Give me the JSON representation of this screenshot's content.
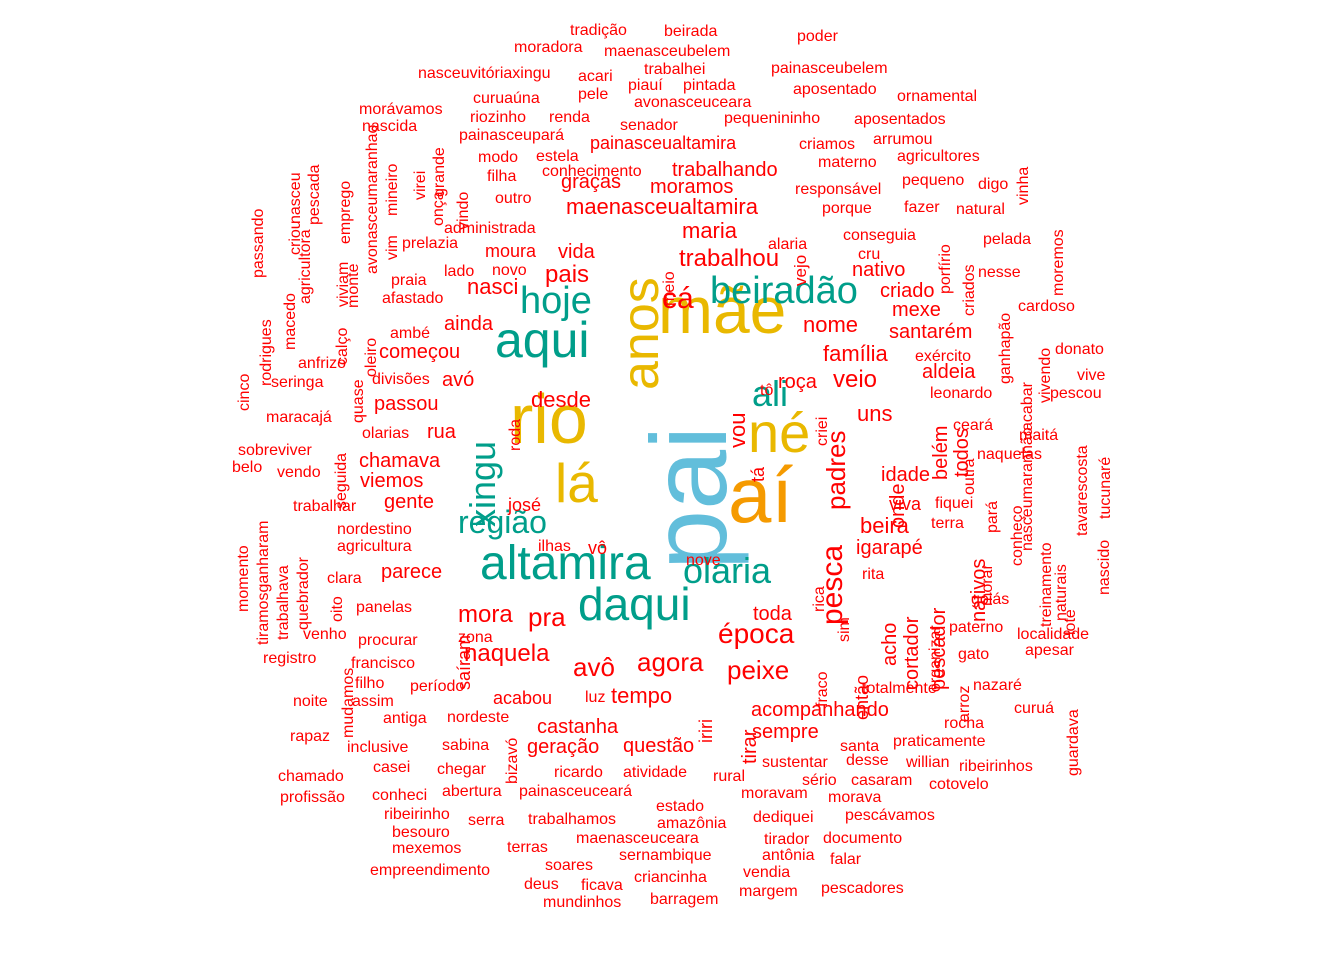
{
  "chart_data": {
    "type": "wordcloud",
    "colors": {
      "c1": "#62bedb",
      "c2": "#f59a00",
      "c3": "#e9b800",
      "c4": "#009e8a",
      "c5": "#ff0000"
    },
    "words": [
      {
        "text": "pai",
        "weight": 110,
        "color": "c1",
        "rotate": true
      },
      {
        "text": "aí",
        "weight": 80,
        "color": "c2",
        "rotate": false
      },
      {
        "text": "mãe",
        "weight": 70,
        "color": "c3",
        "rotate": false
      },
      {
        "text": "rio",
        "weight": 70,
        "color": "c3",
        "rotate": false
      },
      {
        "text": "anos",
        "weight": 55,
        "color": "c3",
        "rotate": true
      },
      {
        "text": "né",
        "weight": 55,
        "color": "c3",
        "rotate": false
      },
      {
        "text": "lá",
        "weight": 55,
        "color": "c3",
        "rotate": false
      },
      {
        "text": "aqui",
        "weight": 50,
        "color": "c4",
        "rotate": false
      },
      {
        "text": "altamira",
        "weight": 48,
        "color": "c4",
        "rotate": false
      },
      {
        "text": "daqui",
        "weight": 45,
        "color": "c4",
        "rotate": false
      },
      {
        "text": "hoje",
        "weight": 38,
        "color": "c4",
        "rotate": false
      },
      {
        "text": "beiradão",
        "weight": 38,
        "color": "c4",
        "rotate": false
      },
      {
        "text": "xingu",
        "weight": 36,
        "color": "c4",
        "rotate": true
      },
      {
        "text": "olaria",
        "weight": 36,
        "color": "c4",
        "rotate": false
      },
      {
        "text": "ali",
        "weight": 34,
        "color": "c4",
        "rotate": false
      },
      {
        "text": "região",
        "weight": 32,
        "color": "c4",
        "rotate": false
      },
      {
        "text": "cá",
        "weight": 30,
        "color": "c5",
        "rotate": false
      },
      {
        "text": "pesca",
        "weight": 30,
        "color": "c5",
        "rotate": true
      },
      {
        "text": "época",
        "weight": 28,
        "color": "c5",
        "rotate": false
      },
      {
        "text": "avô",
        "weight": 26,
        "color": "c5",
        "rotate": false
      },
      {
        "text": "agora",
        "weight": 26,
        "color": "c5",
        "rotate": false
      },
      {
        "text": "peixe",
        "weight": 26,
        "color": "c5",
        "rotate": false
      },
      {
        "text": "padres",
        "weight": 26,
        "color": "c5",
        "rotate": true
      },
      {
        "text": "pra",
        "weight": 26,
        "color": "c5",
        "rotate": false
      },
      {
        "text": "trabalhou",
        "weight": 24,
        "color": "c5",
        "rotate": false
      },
      {
        "text": "mora",
        "weight": 24,
        "color": "c5",
        "rotate": false
      },
      {
        "text": "veio",
        "weight": 24,
        "color": "c5",
        "rotate": false
      },
      {
        "text": "naquela",
        "weight": 24,
        "color": "c5",
        "rotate": false
      },
      {
        "text": "pais",
        "weight": 24,
        "color": "c5",
        "rotate": false
      },
      {
        "text": "maria",
        "weight": 22,
        "color": "c5",
        "rotate": false
      },
      {
        "text": "nasci",
        "weight": 22,
        "color": "c5",
        "rotate": false
      },
      {
        "text": "desde",
        "weight": 22,
        "color": "c5",
        "rotate": false
      },
      {
        "text": "tempo",
        "weight": 22,
        "color": "c5",
        "rotate": false
      },
      {
        "text": "nome",
        "weight": 22,
        "color": "c5",
        "rotate": false
      },
      {
        "text": "família",
        "weight": 22,
        "color": "c5",
        "rotate": false
      },
      {
        "text": "maenasceualtamira",
        "weight": 22,
        "color": "c5",
        "rotate": false
      },
      {
        "text": "vou",
        "weight": 22,
        "color": "c5",
        "rotate": true
      },
      {
        "text": "uns",
        "weight": 22,
        "color": "c5",
        "rotate": false
      },
      {
        "text": "beira",
        "weight": 22,
        "color": "c5",
        "rotate": false
      },
      {
        "text": "ainda",
        "weight": 20,
        "color": "c5",
        "rotate": false
      },
      {
        "text": "passou",
        "weight": 20,
        "color": "c5",
        "rotate": false
      },
      {
        "text": "avó",
        "weight": 20,
        "color": "c5",
        "rotate": false
      },
      {
        "text": "chamava",
        "weight": 20,
        "color": "c5",
        "rotate": false
      },
      {
        "text": "começou",
        "weight": 20,
        "color": "c5",
        "rotate": false
      },
      {
        "text": "vida",
        "weight": 20,
        "color": "c5",
        "rotate": false
      },
      {
        "text": "moura",
        "weight": 18,
        "color": "c5",
        "rotate": false
      },
      {
        "text": "toda",
        "weight": 20,
        "color": "c5",
        "rotate": false
      },
      {
        "text": "acompanhando",
        "weight": 20,
        "color": "c5",
        "rotate": false
      },
      {
        "text": "sempre",
        "weight": 20,
        "color": "c5",
        "rotate": false
      },
      {
        "text": "questão",
        "weight": 20,
        "color": "c5",
        "rotate": false
      },
      {
        "text": "castanha",
        "weight": 20,
        "color": "c5",
        "rotate": false
      },
      {
        "text": "geração",
        "weight": 20,
        "color": "c5",
        "rotate": false
      },
      {
        "text": "acabou",
        "weight": 18,
        "color": "c5",
        "rotate": false
      },
      {
        "text": "parece",
        "weight": 20,
        "color": "c5",
        "rotate": false
      },
      {
        "text": "gente",
        "weight": 20,
        "color": "c5",
        "rotate": false
      },
      {
        "text": "viemos",
        "weight": 20,
        "color": "c5",
        "rotate": false
      },
      {
        "text": "rua",
        "weight": 20,
        "color": "c5",
        "rotate": false
      },
      {
        "text": "josé",
        "weight": 18,
        "color": "c5",
        "rotate": false
      },
      {
        "text": "vô",
        "weight": 18,
        "color": "c5",
        "rotate": false
      },
      {
        "text": "saíram",
        "weight": 18,
        "color": "c5",
        "rotate": true
      },
      {
        "text": "tirar",
        "weight": 20,
        "color": "c5",
        "rotate": true
      },
      {
        "text": "iriri",
        "weight": 18,
        "color": "c5",
        "rotate": true
      },
      {
        "text": "roça",
        "weight": 20,
        "color": "c5",
        "rotate": false
      },
      {
        "text": "tá",
        "weight": 18,
        "color": "c5",
        "rotate": true
      },
      {
        "text": "onde",
        "weight": 20,
        "color": "c5",
        "rotate": true
      },
      {
        "text": "idade",
        "weight": 20,
        "color": "c5",
        "rotate": false
      },
      {
        "text": "viva",
        "weight": 18,
        "color": "c5",
        "rotate": false
      },
      {
        "text": "igarapé",
        "weight": 20,
        "color": "c5",
        "rotate": false
      },
      {
        "text": "acho",
        "weight": 20,
        "color": "c5",
        "rotate": true
      },
      {
        "text": "cortador",
        "weight": 20,
        "color": "c5",
        "rotate": true
      },
      {
        "text": "pescador",
        "weight": 20,
        "color": "c5",
        "rotate": true
      },
      {
        "text": "então",
        "weight": 18,
        "color": "c5",
        "rotate": true
      },
      {
        "text": "nativos",
        "weight": 20,
        "color": "c5",
        "rotate": true
      },
      {
        "text": "belém",
        "weight": 20,
        "color": "c5",
        "rotate": true
      },
      {
        "text": "todos",
        "weight": 20,
        "color": "c5",
        "rotate": true
      },
      {
        "text": "aldeia",
        "weight": 20,
        "color": "c5",
        "rotate": false
      },
      {
        "text": "santarém",
        "weight": 20,
        "color": "c5",
        "rotate": false
      },
      {
        "text": "mexe",
        "weight": 20,
        "color": "c5",
        "rotate": false
      },
      {
        "text": "criado",
        "weight": 20,
        "color": "c5",
        "rotate": false
      },
      {
        "text": "nativo",
        "weight": 20,
        "color": "c5",
        "rotate": false
      },
      {
        "text": "veio2",
        "weight": 0,
        "color": "c5",
        "rotate": false
      },
      {
        "text": "trabalhando",
        "weight": 20,
        "color": "c5",
        "rotate": false
      },
      {
        "text": "graças",
        "weight": 20,
        "color": "c5",
        "rotate": false
      },
      {
        "text": "moramos",
        "weight": 20,
        "color": "c5",
        "rotate": false
      },
      {
        "text": "painasceualtamira",
        "weight": 18,
        "color": "c5",
        "rotate": false
      },
      {
        "text": "ilhas",
        "weight": 16,
        "color": "c5",
        "rotate": false
      },
      {
        "text": "nove",
        "weight": 16,
        "color": "c5",
        "rotate": false
      },
      {
        "text": "rica",
        "weight": 16,
        "color": "c5",
        "rotate": true
      },
      {
        "text": "sim",
        "weight": 16,
        "color": "c5",
        "rotate": true
      },
      {
        "text": "rita",
        "weight": 16,
        "color": "c5",
        "rotate": false
      },
      {
        "text": "tô",
        "weight": 16,
        "color": "c5",
        "rotate": false
      },
      {
        "text": "criei",
        "weight": 16,
        "color": "c5",
        "rotate": true
      },
      {
        "text": "veja",
        "weight": 0,
        "color": "c5",
        "rotate": true
      }
    ],
    "small_words": [
      "tradição",
      "beirada",
      "poder",
      "moradora",
      "maenasceubelem",
      "trabalhei",
      "painasceubelem",
      "nasceuvitóriaxingu",
      "acari",
      "piauí",
      "pintada",
      "aposentado",
      "pele",
      "avonasceuceara",
      "ornamental",
      "curuaúna",
      "morávamos",
      "renda",
      "riozinho",
      "pequenininho",
      "aposentados",
      "nascida",
      "senador",
      "painasceupará",
      "arrumou",
      "criamos",
      "modo",
      "estela",
      "materno",
      "agricultores",
      "conhecimento",
      "filha",
      "pequeno",
      "digo",
      "outro",
      "responsável",
      "porque",
      "fazer",
      "natural",
      "administrada",
      "conseguia",
      "pelada",
      "alaria",
      "cru",
      "prelazia",
      "lado",
      "novo",
      "nesse",
      "praia",
      "afastado",
      "cardoso",
      "ambé",
      "donato",
      "anfrizo",
      "divisões",
      "vive",
      "seringa",
      "exército",
      "leonardo",
      "pescou",
      "maracajá",
      "olarias",
      "ceará",
      "maitá",
      "sobreviver",
      "naquelas",
      "belo",
      "vendo",
      "fiquei",
      "trabalhar",
      "nordestino",
      "terra",
      "agricultura",
      "clara",
      "panelas",
      "localidade",
      "goiás",
      "paterno",
      "venho",
      "zona",
      "procurar",
      "apesar",
      "registro",
      "francisco",
      "gato",
      "filho",
      "período",
      "nazaré",
      "noite",
      "assim",
      "totalmente",
      "luz",
      "nordeste",
      "curuá",
      "rapaz",
      "antiga",
      "rocha",
      "inclusive",
      "sabina",
      "praticamente",
      "santa",
      "casei",
      "chegar",
      "ricardo",
      "atividade",
      "rural",
      "sustentar",
      "desse",
      "willian",
      "ribeirinhos",
      "chamado",
      "sério",
      "casaram",
      "cotovelo",
      "abertura",
      "profissão",
      "conheci",
      "painasceuceará",
      "moravam",
      "morava",
      "estado",
      "ribeirinho",
      "serra",
      "trabalhamos",
      "amazônia",
      "dediquei",
      "pescávamos",
      "besouro",
      "maenasceuceara",
      "tirador",
      "documento",
      "mexemos",
      "terras",
      "sernambique",
      "antônia",
      "falar",
      "empreendimento",
      "soares",
      "criancinha",
      "vendia",
      "deus",
      "ficava",
      "margem",
      "pescadores",
      "mundinhos",
      "barragem"
    ],
    "vertical_small": [
      "passando",
      "nasceu",
      "pescada",
      "criou",
      "agricultora",
      "emprego",
      "viviam",
      "monte",
      "avonasceumaranhao",
      "mineiro",
      "vim",
      "virei",
      "onça",
      "grande",
      "vindo",
      "rodrigues",
      "macedo",
      "calço",
      "oleiro",
      "quase",
      "cinco",
      "roda",
      "seguida",
      "guardava",
      "treinamento",
      "naturais",
      "nascido",
      "tucunaré",
      "tavarescosta",
      "lote",
      "conheço",
      "nasceumaranhão",
      "pará",
      "morar",
      "arroz",
      "organizar",
      "outra",
      "vivendo",
      "ganhapão",
      "acabar",
      "porfírio",
      "criados",
      "moremos",
      "vinha",
      "meio",
      "fraco",
      "momento",
      "tiramosganharam",
      "trabalhava",
      "quebrador",
      "oito",
      "mudamos",
      "bizavó"
    ]
  }
}
